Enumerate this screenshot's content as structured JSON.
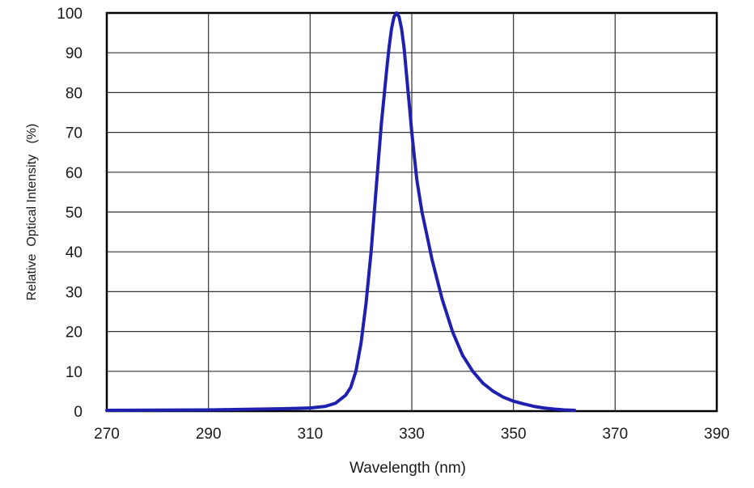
{
  "chart_data": {
    "type": "line",
    "title": "",
    "xlabel": "Wavelength (nm)",
    "ylabel": "Relative  Optical Intensity   (%)",
    "xlim": [
      270,
      390
    ],
    "ylim": [
      0,
      100
    ],
    "xticks": [
      "270",
      "290",
      "310",
      "330",
      "350",
      "370",
      "390"
    ],
    "yticks": [
      "0",
      "10",
      "20",
      "30",
      "40",
      "50",
      "60",
      "70",
      "80",
      "90",
      "100"
    ],
    "grid": true,
    "legend": "none",
    "series": [
      {
        "color": "#2020b0",
        "x": [
          270,
          290,
          300,
          305,
          310,
          313,
          315,
          317,
          318,
          319,
          320,
          321,
          322,
          323,
          324,
          325,
          325.5,
          326,
          326.5,
          327,
          327.5,
          328,
          328.5,
          329,
          329.5,
          330,
          330.5,
          331,
          332,
          333,
          334,
          335,
          336,
          337,
          338,
          339,
          340,
          342,
          344,
          346,
          348,
          350,
          352,
          354,
          356,
          358,
          360,
          362
        ],
        "y": [
          0.2,
          0.3,
          0.5,
          0.6,
          0.8,
          1.2,
          2,
          4,
          6,
          10,
          17,
          27,
          40,
          56,
          72,
          85,
          91,
          96,
          99,
          100,
          99,
          96,
          91,
          84,
          77,
          70,
          64,
          58,
          50,
          44,
          38,
          33,
          28,
          24,
          20,
          17,
          14,
          10,
          7,
          5,
          3.5,
          2.5,
          1.8,
          1.2,
          0.8,
          0.5,
          0.3,
          0.2
        ]
      }
    ]
  }
}
